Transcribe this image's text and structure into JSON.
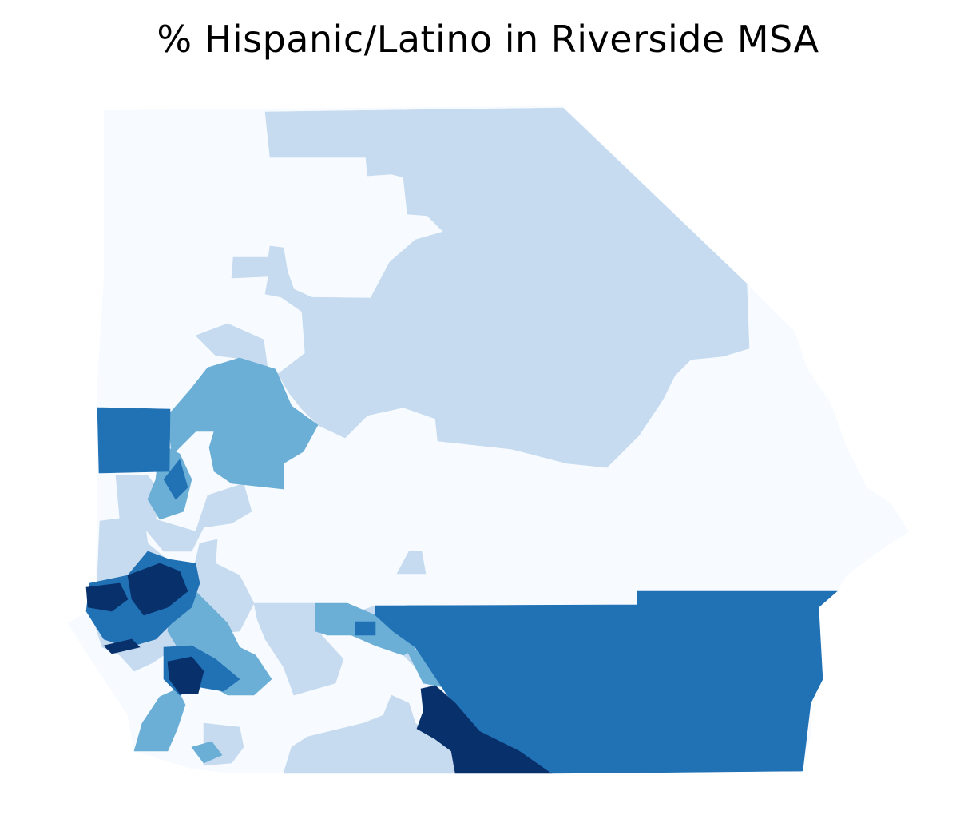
{
  "title": "% Hispanic/Latino in Riverside MSA",
  "chart_data": {
    "type": "choropleth",
    "region": "Riverside MSA",
    "variable": "% Hispanic/Latino",
    "colormap": "Blues",
    "legend": "none",
    "axes": "off",
    "classes": [
      {
        "level": 1,
        "color": "#f7fbff"
      },
      {
        "level": 2,
        "color": "#c6dbef"
      },
      {
        "level": 3,
        "color": "#6baed6"
      },
      {
        "level": 4,
        "color": "#2171b5"
      },
      {
        "level": 5,
        "color": "#08306b"
      }
    ]
  }
}
